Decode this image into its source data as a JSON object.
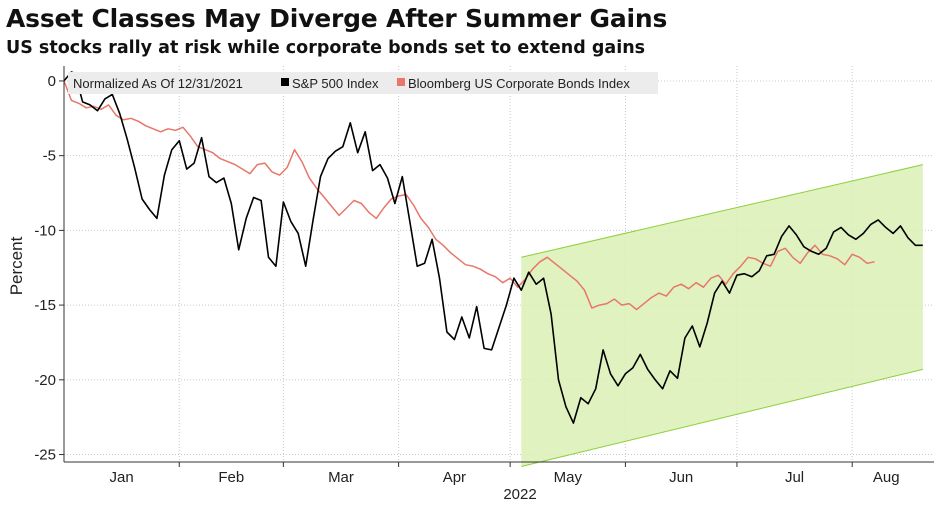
{
  "chart_data": {
    "type": "line",
    "title": "Asset Classes May Diverge After Summer Gains",
    "subtitle": "US stocks rally at risk while corporate bonds set to extend gains",
    "ylabel": "Percent",
    "xlabel": "2022",
    "ylim": [
      -25.5,
      1
    ],
    "yticks": [
      0,
      -5,
      -10,
      -15,
      -20,
      -25
    ],
    "months": [
      "Jan",
      "Feb",
      "Mar",
      "Apr",
      "May",
      "Jun",
      "Jul",
      "Aug"
    ],
    "legend": {
      "note": "Normalized As Of 12/31/2021",
      "items": [
        {
          "name": "S&P 500 Index",
          "color": "#000000"
        },
        {
          "name": "Bloomberg US Corporate Bonds Index",
          "color": "#e8766a"
        }
      ]
    },
    "channel": {
      "color": "#d9f0b4",
      "edge_color": "#8ccf3c",
      "x_start_day": 123,
      "x_end_day": 231,
      "upper": [
        -11.8,
        -5.6
      ],
      "lower": [
        -25.8,
        -19.3
      ]
    },
    "series": [
      {
        "name": "S&P 500 Index",
        "color": "#000000",
        "x": [
          0,
          2,
          3,
          5,
          7,
          9,
          11,
          13,
          15,
          17,
          19,
          21,
          23,
          25,
          27,
          29,
          31,
          33,
          35,
          37,
          39,
          41,
          43,
          45,
          47,
          49,
          51,
          53,
          55,
          57,
          59,
          61,
          63,
          65,
          67,
          69,
          71,
          73,
          75,
          77,
          79,
          81,
          83,
          85,
          87,
          89,
          91,
          93,
          95,
          97,
          99,
          101,
          103,
          105,
          107,
          109,
          111,
          113,
          115,
          117,
          119,
          121,
          123,
          125,
          127,
          129,
          131,
          133,
          135,
          137,
          139,
          141,
          143,
          145,
          147,
          149,
          151,
          153,
          155,
          157,
          159,
          161,
          163,
          165,
          167,
          169,
          171,
          173,
          175,
          177,
          179,
          181,
          183,
          185,
          187,
          189,
          191,
          193,
          195,
          197,
          199,
          201,
          203,
          205,
          207,
          209,
          211,
          213,
          215,
          217,
          219,
          221,
          223,
          225,
          227,
          229,
          231
        ],
        "values": [
          0,
          0.6,
          0.5,
          -1.4,
          -1.6,
          -2.0,
          -1.2,
          -0.9,
          -2.2,
          -3.9,
          -5.8,
          -7.9,
          -8.6,
          -9.2,
          -6.3,
          -4.6,
          -4.0,
          -5.9,
          -5.5,
          -3.8,
          -6.4,
          -6.8,
          -6.5,
          -8.2,
          -11.3,
          -9.2,
          -7.8,
          -8.0,
          -11.8,
          -12.4,
          -8.1,
          -9.4,
          -10.2,
          -12.4,
          -9.3,
          -6.4,
          -5.2,
          -4.7,
          -4.4,
          -2.8,
          -4.8,
          -3.4,
          -6.0,
          -5.6,
          -6.5,
          -8.2,
          -6.4,
          -9.4,
          -12.4,
          -12.2,
          -10.6,
          -13.2,
          -16.8,
          -17.3,
          -15.8,
          -17.2,
          -15.1,
          -17.9,
          -18.0,
          -16.5,
          -15.0,
          -13.2,
          -14.0,
          -12.8,
          -13.6,
          -13.2,
          -15.6,
          -20.0,
          -21.8,
          -22.9,
          -21.2,
          -21.6,
          -20.6,
          -18.0,
          -19.6,
          -20.4,
          -19.6,
          -19.2,
          -18.3,
          -19.3,
          -20.0,
          -20.6,
          -19.4,
          -19.9,
          -17.2,
          -16.4,
          -17.8,
          -16.2,
          -14.2,
          -13.4,
          -14.2,
          -13.0,
          -12.9,
          -13.1,
          -12.7,
          -11.7,
          -11.6,
          -10.4,
          -9.7,
          -10.3,
          -11.1,
          -11.4,
          -11.6,
          -11.2,
          -10.1,
          -9.8,
          -10.3,
          -10.6,
          -10.2,
          -9.6,
          -9.3,
          -9.8,
          -10.2,
          -9.7,
          -10.5,
          -11.0,
          -11.0
        ],
        "visible_until_day": 231
      },
      {
        "name": "Bloomberg US Corporate Bonds Index",
        "color": "#e8766a",
        "x": [
          0,
          2,
          4,
          6,
          8,
          10,
          12,
          14,
          16,
          18,
          20,
          22,
          24,
          26,
          28,
          30,
          32,
          34,
          36,
          38,
          40,
          42,
          44,
          46,
          48,
          50,
          52,
          54,
          56,
          58,
          60,
          62,
          64,
          66,
          68,
          70,
          72,
          74,
          76,
          78,
          80,
          82,
          84,
          86,
          88,
          90,
          92,
          94,
          96,
          98,
          100,
          102,
          104,
          106,
          108,
          110,
          112,
          114,
          116,
          118,
          120,
          122,
          124,
          126,
          128,
          130,
          132,
          134,
          136,
          138,
          140,
          142,
          144,
          146,
          148,
          150,
          152,
          154,
          156,
          158,
          160,
          162,
          164,
          166,
          168,
          170,
          172,
          174,
          176,
          178,
          180,
          182,
          184,
          186,
          188,
          190,
          192,
          194,
          196,
          198,
          200,
          202,
          204,
          206,
          208,
          210,
          212,
          214,
          216,
          218
        ],
        "values": [
          0,
          -1.3,
          -1.5,
          -1.8,
          -1.7,
          -1.9,
          -1.6,
          -2.3,
          -2.6,
          -2.5,
          -2.7,
          -3.0,
          -3.2,
          -3.4,
          -3.2,
          -3.3,
          -3.1,
          -3.7,
          -4.4,
          -4.6,
          -4.8,
          -5.2,
          -5.4,
          -5.6,
          -5.9,
          -6.2,
          -5.6,
          -5.5,
          -6.1,
          -6.3,
          -5.8,
          -4.6,
          -5.4,
          -6.5,
          -7.2,
          -7.8,
          -8.4,
          -9.0,
          -8.5,
          -8.0,
          -8.2,
          -8.8,
          -9.2,
          -8.5,
          -7.9,
          -7.7,
          -7.6,
          -8.3,
          -9.2,
          -9.8,
          -10.6,
          -11.0,
          -11.5,
          -11.9,
          -12.3,
          -12.4,
          -12.6,
          -12.9,
          -13.1,
          -13.5,
          -13.2,
          -13.8,
          -13.3,
          -12.6,
          -12.1,
          -11.8,
          -12.2,
          -12.6,
          -13.0,
          -13.4,
          -14.0,
          -15.2,
          -15.0,
          -14.9,
          -14.6,
          -15.0,
          -14.9,
          -15.3,
          -14.9,
          -14.5,
          -14.2,
          -14.4,
          -13.8,
          -13.6,
          -13.9,
          -13.5,
          -13.8,
          -13.2,
          -13.0,
          -13.6,
          -12.9,
          -12.4,
          -11.8,
          -11.9,
          -12.2,
          -12.4,
          -11.4,
          -11.2,
          -11.8,
          -12.2,
          -11.5,
          -11.0,
          -11.6,
          -11.7,
          -11.9,
          -12.3,
          -11.6,
          -11.8,
          -12.2,
          -12.1
        ]
      }
    ]
  }
}
